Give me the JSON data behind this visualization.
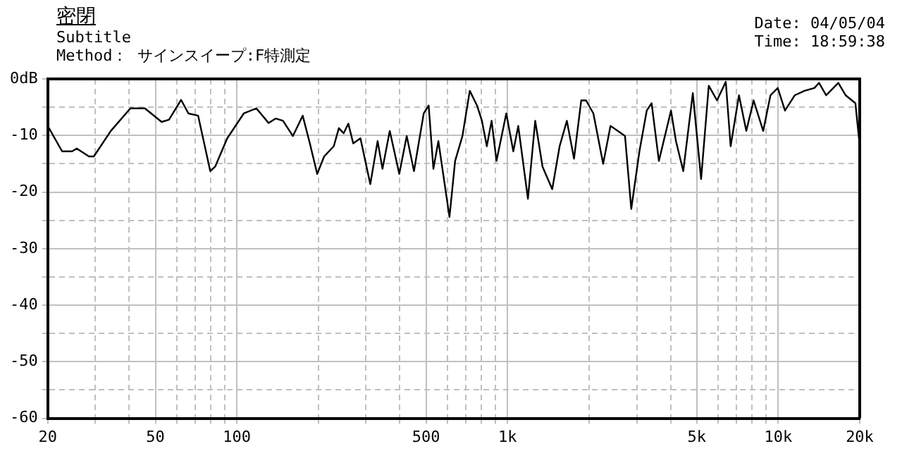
{
  "chart_data": {
    "type": "line",
    "title": "密閉",
    "subtitle": "Subtitle",
    "annotations": [
      "Method： サインスイープ:F特測定",
      "Date: 04/05/04",
      "Time: 18:59:38"
    ],
    "x": [
      20,
      22.6,
      24.6,
      25.6,
      28.4,
      29.6,
      34.2,
      40.4,
      45.7,
      52.7,
      56.1,
      62.2,
      66.2,
      71.9,
      79.7,
      83.1,
      92.1,
      106,
      118,
      131,
      139,
      148,
      161,
      175,
      186,
      198,
      210,
      228,
      238,
      248,
      258,
      269,
      286,
      311,
      331,
      345,
      367,
      398,
      424,
      451,
      490,
      511,
      532,
      555,
      610,
      640,
      681,
      725,
      771,
      804,
      838,
      873,
      910,
      989,
      1050,
      1095,
      1189,
      1265,
      1346,
      1462,
      1557,
      1656,
      1760,
      1871,
      1950,
      2075,
      2255,
      2400,
      2553,
      2716,
      2864,
      3070,
      3267,
      3405,
      3623,
      4016,
      4189,
      4457,
      4835,
      5188,
      5538,
      5940,
      6400,
      6670,
      7160,
      7620,
      8110,
      8800,
      9360,
      9960,
      10590,
      11500,
      12500,
      13600,
      14150,
      15030,
      16670,
      17750,
      19280,
      19920,
      20000
    ],
    "series": [
      {
        "color": "#000000",
        "values": [
          -8.3,
          -12.8,
          -12.8,
          -12.3,
          -13.7,
          -13.7,
          -9.2,
          -5.2,
          -5.2,
          -7.6,
          -7.2,
          -3.7,
          -6.1,
          -6.5,
          -16.3,
          -15.5,
          -10.5,
          -6.1,
          -5.2,
          -7.8,
          -7.0,
          -7.4,
          -10.1,
          -6.5,
          -11.4,
          -16.8,
          -13.7,
          -11.9,
          -8.7,
          -9.6,
          -7.9,
          -11.4,
          -10.5,
          -18.6,
          -11.0,
          -15.9,
          -9.2,
          -16.8,
          -10.1,
          -16.3,
          -6.1,
          -4.7,
          -15.9,
          -11.0,
          -24.4,
          -14.5,
          -10.1,
          -2.1,
          -4.7,
          -7.4,
          -11.9,
          -7.4,
          -14.5,
          -6.1,
          -12.8,
          -8.3,
          -21.2,
          -7.4,
          -15.5,
          -19.5,
          -11.9,
          -7.4,
          -14.1,
          -3.8,
          -3.8,
          -6.1,
          -15.0,
          -8.3,
          -9.2,
          -10.1,
          -23.0,
          -12.8,
          -5.6,
          -4.3,
          -14.5,
          -5.6,
          -11.0,
          -16.3,
          -2.5,
          -17.7,
          -1.2,
          -3.8,
          -0.5,
          -11.9,
          -2.9,
          -9.2,
          -3.8,
          -9.2,
          -2.9,
          -1.6,
          -5.6,
          -2.9,
          -2.1,
          -1.6,
          -0.7,
          -2.9,
          -0.7,
          -2.9,
          -4.3,
          -11.0,
          -19.0
        ]
      }
    ],
    "xlim": [
      20,
      20000
    ],
    "ylim": [
      -60,
      0
    ],
    "xticks": [
      20,
      {
        "value": 30,
        "label": null
      },
      {
        "value": 40,
        "label": null
      },
      50,
      {
        "value": 60,
        "label": null
      },
      {
        "value": 70,
        "label": null
      },
      {
        "value": 80,
        "label": null
      },
      {
        "value": 90,
        "label": null
      },
      100,
      {
        "value": 200,
        "label": null
      },
      {
        "value": 300,
        "label": null
      },
      {
        "value": 400,
        "label": null
      },
      500,
      {
        "value": 600,
        "label": null
      },
      {
        "value": 700,
        "label": null
      },
      {
        "value": 800,
        "label": null
      },
      {
        "value": 900,
        "label": null
      },
      {
        "value": 1000,
        "label": "1k"
      },
      {
        "value": 2000,
        "label": null
      },
      {
        "value": 3000,
        "label": null
      },
      {
        "value": 4000,
        "label": null
      },
      {
        "value": 5000,
        "label": "5k"
      },
      {
        "value": 6000,
        "label": null
      },
      {
        "value": 7000,
        "label": null
      },
      {
        "value": 8000,
        "label": null
      },
      {
        "value": 9000,
        "label": null
      },
      {
        "value": 10000,
        "label": "10k"
      },
      {
        "value": 20000,
        "label": "20k"
      }
    ],
    "yticks": [
      {
        "value": -60,
        "label": "-60"
      },
      {
        "value": -55,
        "label": null
      },
      -50,
      {
        "value": -45,
        "label": null
      },
      -40,
      {
        "value": -35,
        "label": null
      },
      -30,
      {
        "value": -25,
        "label": null
      },
      -20,
      {
        "value": -15,
        "label": null
      },
      -10,
      {
        "value": -5,
        "label": null
      },
      {
        "value": 0,
        "label": "0dB"
      }
    ],
    "log": "x",
    "grid": true,
    "marker": "none",
    "line_style": "solid"
  }
}
